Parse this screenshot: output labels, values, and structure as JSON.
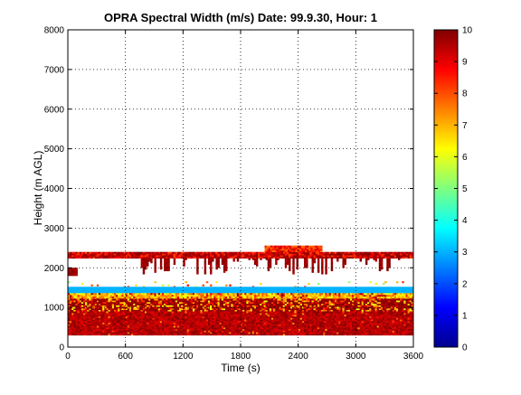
{
  "chart_data": {
    "type": "heatmap",
    "title": "OPRA Spectral Width (m/s)  Date: 99.9.30, Hour: 1",
    "xlabel": "Time (s)",
    "ylabel": "Height (m AGL)",
    "xlim": [
      0,
      3600
    ],
    "ylim": [
      0,
      8000
    ],
    "x_ticks": [
      0,
      600,
      1200,
      1800,
      2400,
      3000,
      3600
    ],
    "y_ticks": [
      0,
      1000,
      2000,
      3000,
      4000,
      5000,
      6000,
      7000,
      8000
    ],
    "x_tick_labels": [
      "0",
      "600",
      "1200",
      "1800",
      "2400",
      "3000",
      "3600"
    ],
    "y_tick_labels": [
      "0",
      "1000",
      "2000",
      "3000",
      "4000",
      "5000",
      "6000",
      "7000",
      "8000"
    ],
    "grid": true,
    "colormap": "jet",
    "colorbar": {
      "range": [
        0,
        10
      ],
      "ticks": [
        0,
        1,
        2,
        3,
        4,
        5,
        6,
        7,
        8,
        9,
        10
      ],
      "tick_labels": [
        "0",
        "1",
        "2",
        "3",
        "4",
        "5",
        "6",
        "7",
        "8",
        "9",
        "10"
      ]
    },
    "layers": [
      {
        "name": "upper-layer",
        "height_range": [
          2240,
          2400
        ],
        "x_range": [
          0,
          3600
        ],
        "value_range": [
          8,
          10
        ]
      },
      {
        "name": "upper-elevated",
        "height_range": [
          2400,
          2550
        ],
        "x_range": [
          2050,
          2650
        ],
        "value_range": [
          7.5,
          9.5
        ]
      },
      {
        "name": "hanging-streaks",
        "height_range": [
          1850,
          2240
        ],
        "x_range": [
          700,
          3450
        ],
        "value_range": [
          9.5,
          10
        ]
      },
      {
        "name": "left-patch",
        "height_range": [
          1800,
          2000
        ],
        "x_range": [
          0,
          100
        ],
        "value_range": [
          9.5,
          10
        ]
      },
      {
        "name": "isolated-points",
        "height_range": [
          1500,
          1650
        ],
        "x_range": [
          0,
          3600
        ],
        "value_range": [
          5,
          9
        ]
      },
      {
        "name": "cyan-band",
        "height_range": [
          1360,
          1500
        ],
        "x_range": [
          0,
          3600
        ],
        "value_range": [
          3,
          3
        ]
      },
      {
        "name": "yellow-band",
        "height_range": [
          1200,
          1360
        ],
        "x_range": [
          0,
          3600
        ],
        "value_range": [
          6,
          8
        ]
      },
      {
        "name": "lower-mixed",
        "height_range": [
          900,
          1200
        ],
        "x_range": [
          0,
          3600
        ],
        "value_range": [
          6,
          10
        ]
      },
      {
        "name": "lower-layer",
        "height_range": [
          300,
          900
        ],
        "x_range": [
          0,
          3600
        ],
        "value_range": [
          9,
          10
        ]
      }
    ]
  }
}
